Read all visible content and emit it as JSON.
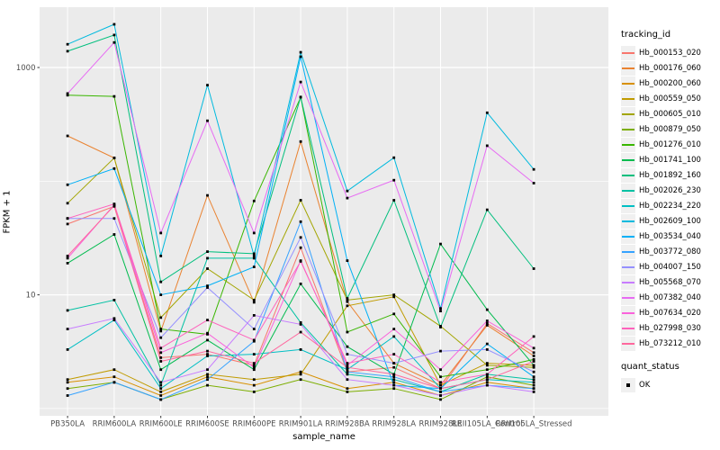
{
  "chart_data": {
    "type": "line",
    "title": "",
    "xlabel": "sample_name",
    "ylabel": "FPKM + 1",
    "y_scale": "log10",
    "y_tick_labels": [
      "1000",
      "10"
    ],
    "y_tick_values": [
      1000,
      10
    ],
    "y_gridlines": [
      1,
      10,
      100,
      1000
    ],
    "ylim_log10": [
      -0.06,
      3.53
    ],
    "grid": "on",
    "legend_position": "right",
    "legend_title": "tracking_id",
    "legend2_title": "quant_status",
    "legend2_items": [
      {
        "label": "OK",
        "shape": "square",
        "color": "#000000"
      }
    ],
    "panel_bg": "#EBEBEB",
    "grid_color": "#FFFFFF",
    "tick_label_color": "#4D4D4D",
    "point_color": "#000000",
    "categories": [
      "PB350LA",
      "RRIM600LA",
      "RRIM600LE",
      "RRIM600SE",
      "RRIM600PE",
      "RRIM901LA",
      "RRIM928BA",
      "RRIM928LA",
      "RRIM928LE",
      "RRII105LA_Control",
      "RRII105LA_Stressed"
    ],
    "series": [
      {
        "name": "Hb_000153_020",
        "color": "#F8766D",
        "values": [
          42,
          60,
          2.8,
          3.0,
          2.4,
          26,
          2.1,
          2.3,
          1.5,
          5.6,
          3.1
        ]
      },
      {
        "name": "Hb_000176_060",
        "color": "#EA8331",
        "values": [
          250,
          160,
          4.8,
          75,
          8.6,
          223,
          8.7,
          2.5,
          1.6,
          5.4,
          2.9
        ]
      },
      {
        "name": "Hb_000200_060",
        "color": "#D89000",
        "values": [
          1.7,
          1.9,
          1.3,
          1.9,
          1.6,
          2.1,
          1.5,
          1.7,
          1.3,
          1.7,
          1.5
        ]
      },
      {
        "name": "Hb_000559_050",
        "color": "#C09B00",
        "values": [
          1.8,
          2.2,
          1.4,
          2.0,
          1.8,
          2.0,
          8.0,
          9.6,
          1.6,
          2.5,
          2.4
        ]
      },
      {
        "name": "Hb_000605_010",
        "color": "#A3A500",
        "values": [
          64,
          160,
          6.3,
          17,
          9.0,
          68,
          9.0,
          10,
          5.3,
          2.4,
          2.3
        ]
      },
      {
        "name": "Hb_000879_050",
        "color": "#7CAE00",
        "values": [
          1.5,
          1.7,
          1.2,
          1.6,
          1.4,
          1.8,
          1.4,
          1.5,
          1.2,
          1.9,
          1.6
        ]
      },
      {
        "name": "Hb_001276_010",
        "color": "#39B600",
        "values": [
          570,
          557,
          5.0,
          4.5,
          67,
          547,
          4.7,
          6.8,
          1.9,
          2.2,
          2.7
        ]
      },
      {
        "name": "Hb_001741_100",
        "color": "#00BB4E",
        "values": [
          19,
          34,
          2.2,
          4.0,
          2.2,
          12.5,
          3.5,
          2.0,
          28,
          7.4,
          2.4
        ]
      },
      {
        "name": "Hb_001892_160",
        "color": "#00BF7D",
        "values": [
          1390,
          1930,
          13,
          24,
          23,
          550,
          9.3,
          68,
          5.2,
          56,
          17
        ]
      },
      {
        "name": "Hb_002026_230",
        "color": "#00C1A3",
        "values": [
          7.3,
          9.0,
          1.6,
          21,
          21,
          5.7,
          2.0,
          1.8,
          1.4,
          2.0,
          1.8
        ]
      },
      {
        "name": "Hb_002234_220",
        "color": "#00BFC4",
        "values": [
          3.3,
          6.0,
          1.5,
          2.9,
          3.0,
          3.3,
          2.2,
          4.3,
          1.5,
          1.8,
          1.7
        ]
      },
      {
        "name": "Hb_002609_100",
        "color": "#00BADE",
        "values": [
          1600,
          2400,
          22,
          700,
          22,
          1360,
          82,
          161,
          7.6,
          400,
          127
        ]
      },
      {
        "name": "Hb_003534_040",
        "color": "#00B0F6",
        "values": [
          93,
          129,
          10,
          12,
          17.6,
          1245,
          20,
          1.6,
          1.5,
          3.7,
          1.9
        ]
      },
      {
        "name": "Hb_003772_080",
        "color": "#35A2FF",
        "values": [
          1.3,
          1.7,
          1.2,
          1.8,
          3.9,
          44,
          2.1,
          1.9,
          1.4,
          1.6,
          1.5
        ]
      },
      {
        "name": "Hb_004007_150",
        "color": "#9590FF",
        "values": [
          47,
          47,
          4.2,
          11.6,
          5.0,
          32,
          3.0,
          2.5,
          3.2,
          3.3,
          2.1
        ]
      },
      {
        "name": "Hb_005568_070",
        "color": "#C77CFF",
        "values": [
          5.0,
          6.2,
          1.7,
          2.2,
          6.6,
          5.5,
          1.8,
          1.6,
          1.3,
          1.6,
          1.4
        ]
      },
      {
        "name": "Hb_007382_040",
        "color": "#E76BF3",
        "values": [
          590,
          1660,
          35,
          340,
          35,
          746,
          71,
          102,
          7.2,
          205,
          96
        ]
      },
      {
        "name": "Hb_007634_020",
        "color": "#FA62DB",
        "values": [
          21,
          62,
          3.1,
          4.6,
          2.3,
          20,
          2.4,
          5.0,
          2.2,
          5.9,
          3.4
        ]
      },
      {
        "name": "Hb_027998_030",
        "color": "#FF62BC",
        "values": [
          47,
          63,
          3.4,
          6.0,
          4.0,
          19.7,
          2.5,
          3.0,
          1.7,
          2.0,
          4.3
        ]
      },
      {
        "name": "Hb_073212_010",
        "color": "#FF689E",
        "values": [
          22,
          61,
          2.6,
          3.2,
          2.5,
          4.7,
          2.3,
          2.0,
          1.5,
          1.8,
          2.6
        ]
      }
    ]
  }
}
